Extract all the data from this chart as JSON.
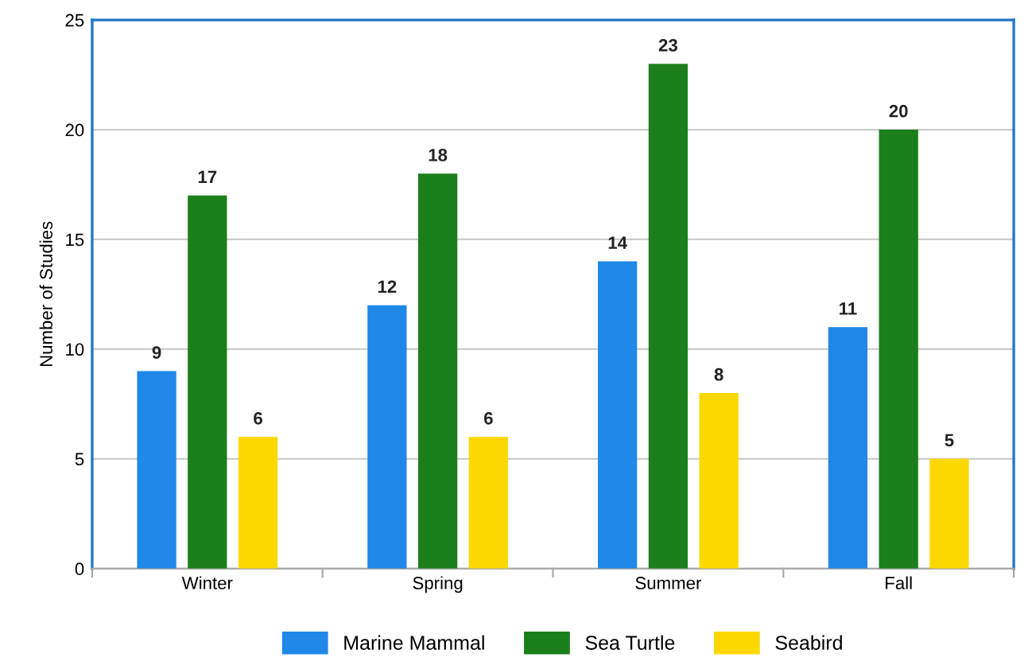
{
  "chart_data": {
    "type": "bar",
    "ylabel": "Number of Studies",
    "categories": [
      "Winter",
      "Spring",
      "Summer",
      "Fall"
    ],
    "series": [
      {
        "name": "Marine Mammal",
        "color": "#1f88e8",
        "values": [
          9,
          12,
          14,
          11
        ]
      },
      {
        "name": "Sea Turtle",
        "color": "#1b7f1b",
        "values": [
          17,
          18,
          23,
          20
        ]
      },
      {
        "name": "Seabird",
        "color": "#fdd800",
        "values": [
          6,
          6,
          8,
          5
        ]
      }
    ],
    "ylim": [
      0,
      25
    ],
    "yticks": [
      0,
      5,
      10,
      15,
      20,
      25
    ],
    "grid": "y",
    "legend": "bottom",
    "data_labels": true
  }
}
